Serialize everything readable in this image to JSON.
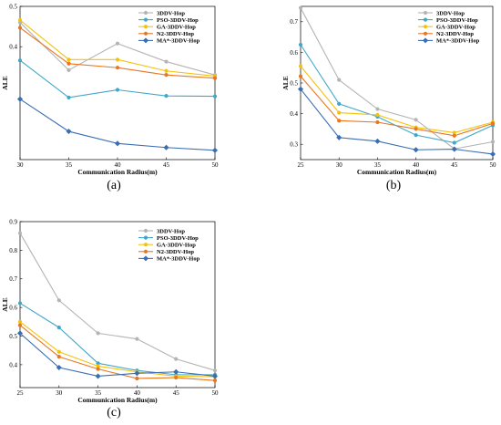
{
  "chart_data": [
    {
      "type": "line",
      "panel_label": "(a)",
      "xlabel": "Communication Radius(m)",
      "ylabel": "ALE",
      "x": [
        30,
        35,
        40,
        45,
        50
      ],
      "xticks": [
        "30",
        "35",
        "40",
        "45",
        "50"
      ],
      "yticks": [
        0.4,
        0.5
      ],
      "ytick_labels": [
        "0.4",
        "0.5"
      ],
      "ylim": [
        0.12,
        0.5
      ],
      "xlim": [
        30,
        50
      ],
      "legend": "top-right",
      "grid": false,
      "series": [
        {
          "name": "3DDV-Hop",
          "color": "#b4b4b4",
          "marker": "circle",
          "values": [
            0.46,
            0.342,
            0.408,
            0.363,
            0.33
          ]
        },
        {
          "name": "PSO-3DDV-Hop",
          "color": "#3fa8c8",
          "marker": "circle",
          "values": [
            0.366,
            0.274,
            0.293,
            0.278,
            0.277
          ]
        },
        {
          "name": "GA-3DDV-Hop",
          "color": "#f4c20d",
          "marker": "circle",
          "values": [
            0.466,
            0.368,
            0.368,
            0.34,
            0.327
          ]
        },
        {
          "name": "N2-3DDV-Hop",
          "color": "#e87722",
          "marker": "circle",
          "values": [
            0.447,
            0.358,
            0.348,
            0.33,
            0.322
          ]
        },
        {
          "name": "MA*-3DDV-Hop",
          "color": "#3a6db3",
          "marker": "diamond",
          "values": [
            0.27,
            0.19,
            0.16,
            0.15,
            0.143
          ]
        }
      ]
    },
    {
      "type": "line",
      "panel_label": "(b)",
      "xlabel": "Communication Radius(m)",
      "ylabel": "ALE",
      "x": [
        25,
        30,
        35,
        40,
        45,
        50
      ],
      "xticks": [
        "25",
        "30",
        "35",
        "40",
        "45",
        "50"
      ],
      "yticks": [
        0.3,
        0.4,
        0.5,
        0.6,
        0.7
      ],
      "ytick_labels": [
        "0.3",
        "0.4",
        "0.5",
        "0.6",
        "0.7"
      ],
      "ylim": [
        0.25,
        0.75
      ],
      "xlim": [
        25,
        50
      ],
      "legend": "top-right",
      "grid": false,
      "series": [
        {
          "name": "3DDV-Hop",
          "color": "#b4b4b4",
          "marker": "circle",
          "values": [
            0.745,
            0.51,
            0.415,
            0.38,
            0.285,
            0.308
          ]
        },
        {
          "name": "PSO-3DDV-Hop",
          "color": "#3fa8c8",
          "marker": "circle",
          "values": [
            0.625,
            0.432,
            0.39,
            0.33,
            0.305,
            0.362
          ]
        },
        {
          "name": "GA-3DDV-Hop",
          "color": "#f4c20d",
          "marker": "circle",
          "values": [
            0.555,
            0.403,
            0.396,
            0.355,
            0.338,
            0.372
          ]
        },
        {
          "name": "N2-3DDV-Hop",
          "color": "#e87722",
          "marker": "circle",
          "values": [
            0.522,
            0.377,
            0.372,
            0.35,
            0.328,
            0.368
          ]
        },
        {
          "name": "MA*-3DDV-Hop",
          "color": "#3a6db3",
          "marker": "diamond",
          "values": [
            0.48,
            0.322,
            0.31,
            0.282,
            0.284,
            0.268
          ]
        }
      ]
    },
    {
      "type": "line",
      "panel_label": "(c)",
      "xlabel": "Communication Radius(m)",
      "ylabel": "ALE",
      "x": [
        25,
        30,
        35,
        40,
        45,
        50
      ],
      "xticks": [
        "25",
        "30",
        "35",
        "40",
        "45",
        "50"
      ],
      "yticks": [
        0.4,
        0.5,
        0.6,
        0.7,
        0.8,
        0.9
      ],
      "ytick_labels": [
        "0.4",
        "0.5",
        "0.6",
        "0.7",
        "0.8",
        "0.9"
      ],
      "ylim": [
        0.32,
        0.9
      ],
      "xlim": [
        25,
        50
      ],
      "legend": "top-right",
      "grid": false,
      "series": [
        {
          "name": "3DDV-Hop",
          "color": "#b4b4b4",
          "marker": "circle",
          "values": [
            0.86,
            0.625,
            0.51,
            0.49,
            0.42,
            0.38
          ]
        },
        {
          "name": "PSO-3DDV-Hop",
          "color": "#3fa8c8",
          "marker": "circle",
          "values": [
            0.615,
            0.53,
            0.405,
            0.38,
            0.365,
            0.365
          ]
        },
        {
          "name": "GA-3DDV-Hop",
          "color": "#f4c20d",
          "marker": "circle",
          "values": [
            0.55,
            0.445,
            0.395,
            0.375,
            0.36,
            0.358
          ]
        },
        {
          "name": "N2-3DDV-Hop",
          "color": "#e87722",
          "marker": "circle",
          "values": [
            0.538,
            0.428,
            0.385,
            0.352,
            0.355,
            0.345
          ]
        },
        {
          "name": "MA*-3DDV-Hop",
          "color": "#3a6db3",
          "marker": "diamond",
          "values": [
            0.51,
            0.39,
            0.36,
            0.37,
            0.375,
            0.36
          ]
        }
      ]
    }
  ]
}
